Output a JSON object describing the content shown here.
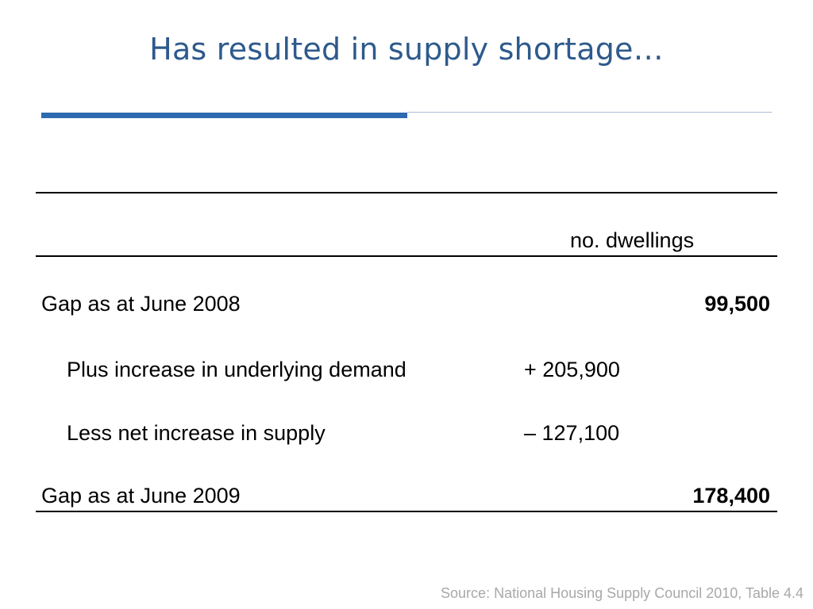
{
  "slide": {
    "title": "Has resulted in supply shortage…",
    "source": "Source: National Housing Supply Council 2010, Table 4.4"
  },
  "table": {
    "column_header": "no. dwellings",
    "rows": [
      {
        "label": "Gap as at June 2008",
        "change": "",
        "total": "99,500"
      },
      {
        "label": "Plus increase in underlying demand",
        "change": "+ 205,900",
        "total": ""
      },
      {
        "label": "Less net increase in supply",
        "change": "– 127,100",
        "total": ""
      },
      {
        "label": "Gap as at June 2009",
        "change": "",
        "total": "178,400"
      }
    ]
  },
  "colors": {
    "title": "#2E5A8C",
    "accent": "#2E6AAF",
    "source_text": "#A8A8A8"
  }
}
